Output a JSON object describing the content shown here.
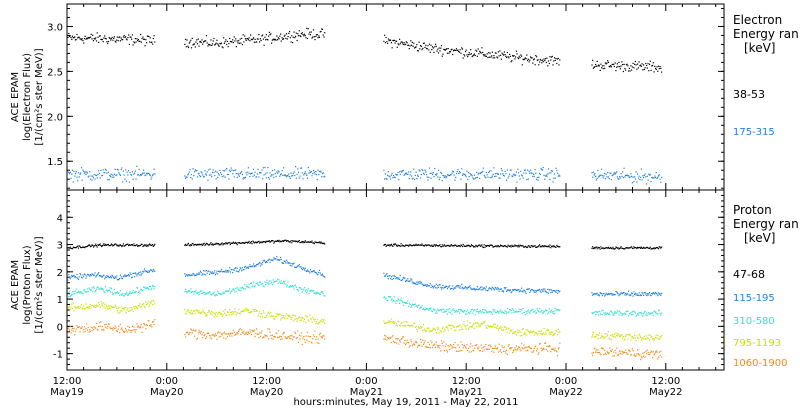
{
  "colors": {
    "black": "#000000",
    "blue": "#1f7fe0",
    "cyan": "#33e0d0",
    "yellow": "#c8e000",
    "orange": "#f08a1c"
  },
  "x_axis": {
    "tick_times": [
      "12:00",
      "0:00",
      "12:00",
      "0:00",
      "12:00",
      "0:00",
      "12:00"
    ],
    "tick_dates": [
      "May19",
      "May20",
      "May20",
      "May21",
      "May21",
      "May22",
      "May22"
    ],
    "tick_hours": [
      12,
      24,
      36,
      48,
      60,
      72,
      84
    ],
    "range_hours": [
      12,
      91
    ],
    "xlabel": "hours:minutes, May 19, 2011 - May 22, 2011"
  },
  "chart_data": [
    {
      "type": "scatter",
      "panel": "electron",
      "ylabel_lines": [
        "ACE EPAM",
        "log(Electron Flux)",
        "[1/(cm²s ster MeV)]"
      ],
      "ylim": [
        1.18,
        3.25
      ],
      "yticks": [
        1.5,
        2.0,
        2.5,
        3.0
      ],
      "ytick_labels": [
        "1.5",
        "2.0",
        "2.5",
        "3.0"
      ],
      "legend_lines": [
        "Electron",
        "Energy ran",
        "[keV]"
      ],
      "data_gaps_hours": [
        [
          22.5,
          26.0
        ],
        [
          43.0,
          50.0
        ],
        [
          71.2,
          75.0
        ]
      ],
      "data_end_hours": 83.5,
      "series": [
        {
          "name": "38-53",
          "color": "#000000",
          "trend": [
            [
              12,
              2.88
            ],
            [
              20,
              2.86
            ],
            [
              23,
              2.84
            ],
            [
              26,
              2.84
            ],
            [
              30,
              2.82
            ],
            [
              35,
              2.86
            ],
            [
              40,
              2.92
            ],
            [
              43,
              2.92
            ],
            [
              50,
              2.85
            ],
            [
              56,
              2.76
            ],
            [
              62,
              2.7
            ],
            [
              66,
              2.66
            ],
            [
              71,
              2.62
            ],
            [
              75,
              2.58
            ],
            [
              83.5,
              2.55
            ]
          ],
          "scatter": 0.05
        },
        {
          "name": "175-315",
          "color": "#1f7fe0",
          "trend": [
            [
              12,
              1.36
            ],
            [
              43,
              1.36
            ],
            [
              50,
              1.36
            ],
            [
              71,
              1.36
            ],
            [
              75,
              1.35
            ],
            [
              83.5,
              1.33
            ]
          ],
          "scatter": 0.06
        }
      ]
    },
    {
      "type": "scatter",
      "panel": "proton",
      "ylabel_lines": [
        "ACE EPAM",
        "log(Proton Flux)",
        "[1/(cm²s ster MeV)]"
      ],
      "ylim": [
        -1.6,
        5.0
      ],
      "yticks": [
        -1,
        0,
        1,
        2,
        3,
        4
      ],
      "ytick_labels": [
        "-1",
        "0",
        "1",
        "2",
        "3",
        "4"
      ],
      "legend_lines": [
        "Proton",
        "Energy ran",
        "[keV]"
      ],
      "data_gaps_hours": [
        [
          22.5,
          26.0
        ],
        [
          43.0,
          50.0
        ],
        [
          71.2,
          75.0
        ]
      ],
      "data_end_hours": 83.5,
      "series": [
        {
          "name": "47-68",
          "color": "#000000",
          "trend": [
            [
              12,
              2.9
            ],
            [
              16,
              3.0
            ],
            [
              22,
              3.0
            ],
            [
              26,
              3.0
            ],
            [
              34,
              3.1
            ],
            [
              38,
              3.15
            ],
            [
              42,
              3.1
            ],
            [
              43,
              3.05
            ],
            [
              50,
              3.0
            ],
            [
              71,
              2.95
            ],
            [
              75,
              2.9
            ],
            [
              83.5,
              2.9
            ]
          ],
          "scatter": 0.04
        },
        {
          "name": "115-195",
          "color": "#1f7fe0",
          "trend": [
            [
              12,
              1.8
            ],
            [
              15,
              1.9
            ],
            [
              18,
              1.8
            ],
            [
              21,
              2.0
            ],
            [
              22.5,
              2.1
            ],
            [
              26,
              1.9
            ],
            [
              30,
              2.0
            ],
            [
              34,
              2.2
            ],
            [
              37,
              2.5
            ],
            [
              40,
              2.2
            ],
            [
              43,
              1.9
            ],
            [
              50,
              1.9
            ],
            [
              56,
              1.5
            ],
            [
              62,
              1.4
            ],
            [
              71,
              1.3
            ],
            [
              75,
              1.2
            ],
            [
              83.5,
              1.2
            ]
          ],
          "scatter": 0.08
        },
        {
          "name": "310-580",
          "color": "#33e0d0",
          "trend": [
            [
              12,
              1.2
            ],
            [
              16,
              1.4
            ],
            [
              19,
              1.2
            ],
            [
              22.5,
              1.5
            ],
            [
              26,
              1.3
            ],
            [
              30,
              1.2
            ],
            [
              34,
              1.5
            ],
            [
              37,
              1.7
            ],
            [
              40,
              1.4
            ],
            [
              43,
              1.2
            ],
            [
              50,
              1.1
            ],
            [
              56,
              0.6
            ],
            [
              62,
              0.55
            ],
            [
              71,
              0.6
            ],
            [
              75,
              0.5
            ],
            [
              83.5,
              0.5
            ]
          ],
          "scatter": 0.09
        },
        {
          "name": "795-1193",
          "color": "#c8e000",
          "trend": [
            [
              12,
              0.7
            ],
            [
              16,
              0.8
            ],
            [
              19,
              0.6
            ],
            [
              22.5,
              0.9
            ],
            [
              26,
              0.6
            ],
            [
              30,
              0.5
            ],
            [
              34,
              0.6
            ],
            [
              37,
              0.4
            ],
            [
              40,
              0.3
            ],
            [
              43,
              0.2
            ],
            [
              50,
              0.2
            ],
            [
              56,
              -0.1
            ],
            [
              62,
              0.1
            ],
            [
              66,
              -0.2
            ],
            [
              71,
              -0.2
            ],
            [
              75,
              -0.3
            ],
            [
              83.5,
              -0.4
            ]
          ],
          "scatter": 0.12
        },
        {
          "name": "1060-1900",
          "color": "#f08a1c",
          "trend": [
            [
              12,
              -0.1
            ],
            [
              16,
              0.0
            ],
            [
              19,
              -0.1
            ],
            [
              22.5,
              0.1
            ],
            [
              26,
              -0.2
            ],
            [
              30,
              -0.3
            ],
            [
              34,
              -0.2
            ],
            [
              37,
              -0.3
            ],
            [
              40,
              -0.4
            ],
            [
              43,
              -0.4
            ],
            [
              50,
              -0.4
            ],
            [
              56,
              -0.7
            ],
            [
              62,
              -0.8
            ],
            [
              71,
              -0.8
            ],
            [
              75,
              -0.9
            ],
            [
              83.5,
              -1.0
            ]
          ],
          "scatter": 0.16
        }
      ]
    }
  ]
}
